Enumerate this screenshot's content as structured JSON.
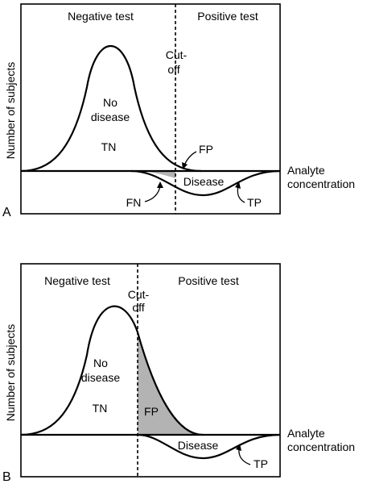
{
  "panels": [
    {
      "letter": "A",
      "region_left": "Negative test",
      "region_right": "Positive test",
      "cutoff_line1": "Cut-",
      "cutoff_line2": "off",
      "nodisease_line1": "No",
      "nodisease_line2": "disease",
      "tn": "TN",
      "fp": "FP",
      "fn": "FN",
      "disease": "Disease",
      "tp": "TP",
      "ylabel": "Number of subjects",
      "xlabel_line1": "Analyte",
      "xlabel_line2": "concentration"
    },
    {
      "letter": "B",
      "region_left": "Negative test",
      "region_right": "Positive test",
      "cutoff_line1": "Cut-",
      "cutoff_line2": "off",
      "nodisease_line1": "No",
      "nodisease_line2": "disease",
      "tn": "TN",
      "fp": "FP",
      "disease": "Disease",
      "tp": "TP",
      "ylabel": "Number of subjects",
      "xlabel_line1": "Analyte",
      "xlabel_line2": "concentration"
    }
  ],
  "colors": {
    "shade": "#b3b3b3",
    "line": "#000000"
  }
}
